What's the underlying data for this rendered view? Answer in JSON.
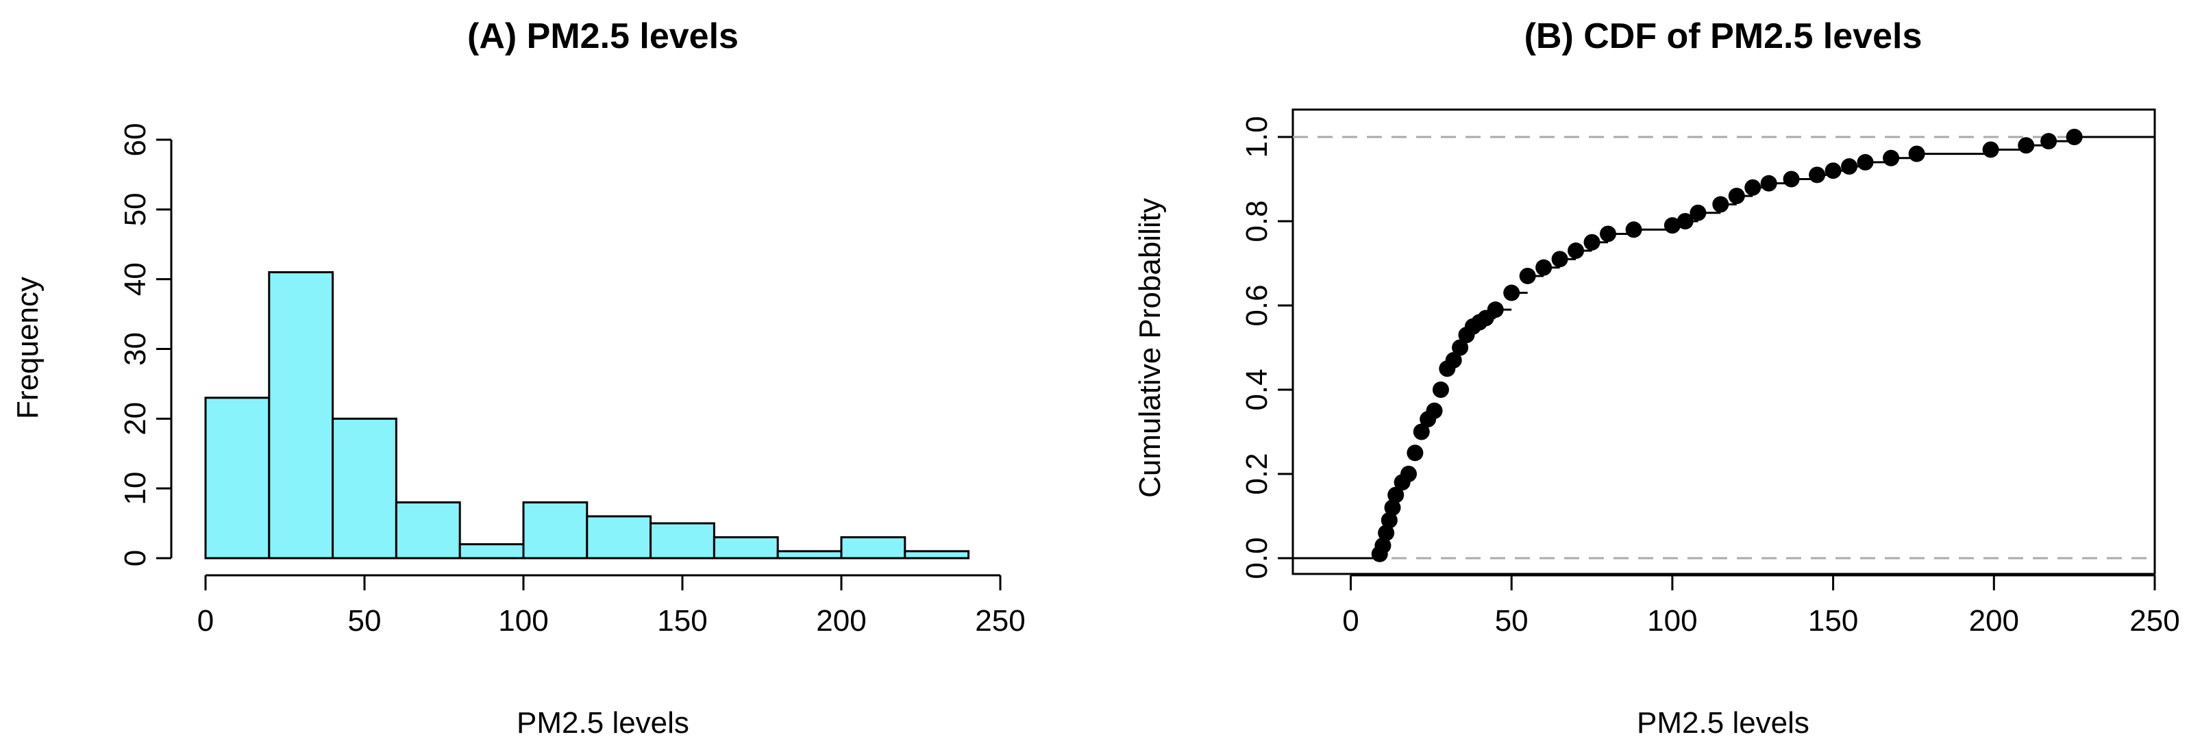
{
  "chart_data": [
    {
      "type": "bar",
      "subtype": "histogram",
      "title": "(A) PM2.5 levels",
      "xlabel": "PM2.5 levels",
      "ylabel": "Frequency",
      "bin_edges": [
        0,
        20,
        40,
        60,
        80,
        100,
        120,
        140,
        160,
        180,
        200,
        220,
        240
      ],
      "values": [
        23,
        41,
        20,
        8,
        2,
        8,
        6,
        5,
        3,
        1,
        3,
        1
      ],
      "xlim": [
        0,
        250
      ],
      "ylim": [
        0,
        60
      ],
      "xticks": [
        0,
        50,
        100,
        150,
        200,
        250
      ],
      "yticks": [
        0,
        10,
        20,
        30,
        40,
        50,
        60
      ],
      "bar_color": "#88f3fb",
      "grid": false
    },
    {
      "type": "line",
      "subtype": "empirical CDF (step function with points)",
      "title": "(B) CDF of PM2.5 levels",
      "xlabel": "PM2.5 levels",
      "ylabel": "Cumulative Probability",
      "xlim": [
        -18,
        250
      ],
      "ylim": [
        0,
        1
      ],
      "xticks": [
        0,
        50,
        100,
        150,
        200,
        250
      ],
      "yticks": [
        0.0,
        0.2,
        0.4,
        0.6,
        0.8,
        1.0
      ],
      "reference_lines_y": [
        0,
        1
      ],
      "reference_line_color": "#aaaaaa",
      "grid": false,
      "series": [
        {
          "x": [
            9,
            10,
            11,
            12,
            13,
            14,
            16,
            18,
            20,
            22,
            24,
            26,
            28,
            30,
            32,
            34,
            36,
            38,
            40,
            42,
            45,
            50,
            55,
            60,
            65,
            70,
            75,
            80,
            88,
            100,
            104,
            108,
            115,
            120,
            125,
            130,
            137,
            145,
            150,
            155,
            160,
            168,
            176,
            199,
            210,
            217,
            225
          ],
          "y": [
            0.01,
            0.03,
            0.06,
            0.09,
            0.12,
            0.15,
            0.18,
            0.2,
            0.25,
            0.3,
            0.33,
            0.35,
            0.4,
            0.45,
            0.47,
            0.5,
            0.53,
            0.55,
            0.56,
            0.57,
            0.59,
            0.63,
            0.67,
            0.69,
            0.71,
            0.73,
            0.75,
            0.77,
            0.78,
            0.79,
            0.8,
            0.82,
            0.84,
            0.86,
            0.88,
            0.89,
            0.9,
            0.91,
            0.92,
            0.93,
            0.94,
            0.95,
            0.96,
            0.97,
            0.98,
            0.99,
            1.0
          ]
        }
      ]
    }
  ]
}
